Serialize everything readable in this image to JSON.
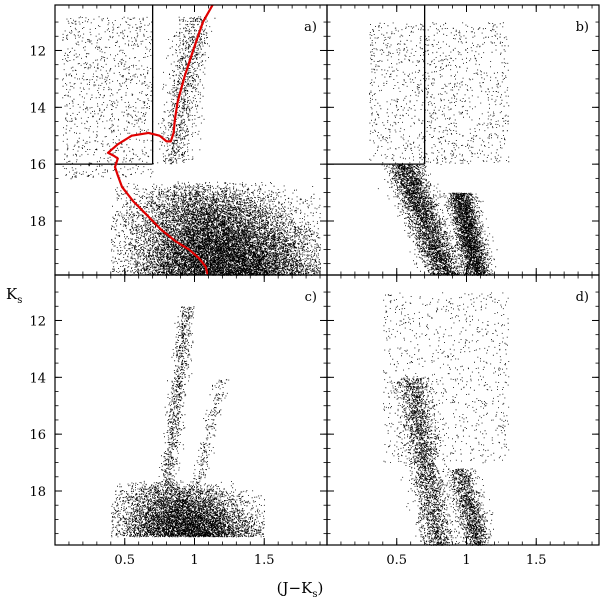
{
  "chart_data": {
    "type": "scatter",
    "layout": "2x2 panel grid with shared axes",
    "xlabel": {
      "main": "(J−K",
      "sub": "s",
      "close": ")"
    },
    "ylabel": {
      "main": "K",
      "sub": "s"
    },
    "xlim": [
      0.0,
      1.95
    ],
    "ylim": [
      19.9,
      10.4
    ],
    "xticks": [
      0.5,
      1.0,
      1.5
    ],
    "xtick_labels": [
      "0.5",
      "1",
      "1.5"
    ],
    "yticks": [
      12,
      14,
      16,
      18
    ],
    "ytick_labels": [
      "12",
      "14",
      "16",
      "18"
    ],
    "y_inverted": true,
    "marker_color": "#000000",
    "isochrone_color": "#e00000",
    "panels": [
      {
        "label": "a)",
        "description_points": "dense field population",
        "density_regions": [
          {
            "shape": "blob",
            "x": [
              0.4,
              1.9
            ],
            "y": [
              16.6,
              19.9
            ],
            "n": 14000
          },
          {
            "shape": "branch",
            "x_at_y": [
              [
                16.0,
                0.85
              ],
              [
                10.8,
                1.0
              ]
            ],
            "width": 0.12,
            "n": 1100
          },
          {
            "shape": "band",
            "x": [
              0.05,
              0.7
            ],
            "y": [
              10.8,
              16.5
            ],
            "n": 1000
          }
        ],
        "selection_box": {
          "x_max": 0.7,
          "y_min": 16.0,
          "y_top": 10.4
        },
        "isochrone": {
          "x": [
            1.1,
            1.08,
            1.03,
            0.96,
            0.86,
            0.76,
            0.66,
            0.56,
            0.48,
            0.45,
            0.43,
            0.45,
            0.42,
            0.38,
            0.45,
            0.55,
            0.67,
            0.75,
            0.8,
            0.83,
            0.85,
            0.86,
            0.88,
            0.93,
            0.99,
            1.06,
            1.13
          ],
          "y": [
            20.0,
            19.6,
            19.3,
            19.0,
            18.7,
            18.3,
            17.8,
            17.3,
            16.8,
            16.4,
            16.1,
            15.8,
            15.7,
            15.6,
            15.3,
            15.0,
            14.9,
            15.0,
            15.2,
            15.2,
            14.9,
            14.4,
            13.8,
            12.9,
            12.0,
            11.0,
            10.4
          ]
        }
      },
      {
        "label": "b)",
        "density_regions": [
          {
            "shape": "branch",
            "x_at_y": [
              [
                16.0,
                0.55
              ],
              [
                19.9,
                0.85
              ]
            ],
            "width": 0.13,
            "n": 3600
          },
          {
            "shape": "branch",
            "x_at_y": [
              [
                17.0,
                0.95
              ],
              [
                19.9,
                1.08
              ]
            ],
            "width": 0.1,
            "n": 3000
          },
          {
            "shape": "band",
            "x": [
              0.3,
              1.3
            ],
            "y": [
              11.0,
              16.0
            ],
            "n": 1200
          }
        ],
        "selection_box": {
          "x_max": 0.7,
          "y_min": 16.0,
          "y_top": 10.4
        }
      },
      {
        "label": "c)",
        "density_regions": [
          {
            "shape": "blob",
            "x": [
              0.4,
              1.5
            ],
            "y": [
              17.6,
              19.6
            ],
            "n": 6500
          },
          {
            "shape": "branch",
            "x_at_y": [
              [
                17.8,
                0.8
              ],
              [
                11.5,
                0.95
              ]
            ],
            "width": 0.06,
            "n": 900
          },
          {
            "shape": "branch",
            "x_at_y": [
              [
                17.7,
                1.02
              ],
              [
                14.0,
                1.2
              ]
            ],
            "width": 0.05,
            "n": 220
          }
        ]
      },
      {
        "label": "d)",
        "density_regions": [
          {
            "shape": "branch",
            "x_at_y": [
              [
                14.0,
                0.6
              ],
              [
                19.9,
                0.8
              ]
            ],
            "width": 0.12,
            "n": 2600
          },
          {
            "shape": "branch",
            "x_at_y": [
              [
                17.2,
                0.95
              ],
              [
                19.9,
                1.08
              ]
            ],
            "width": 0.1,
            "n": 1400
          },
          {
            "shape": "band",
            "x": [
              0.4,
              1.3
            ],
            "y": [
              11.0,
              17.0
            ],
            "n": 900
          }
        ]
      }
    ]
  }
}
